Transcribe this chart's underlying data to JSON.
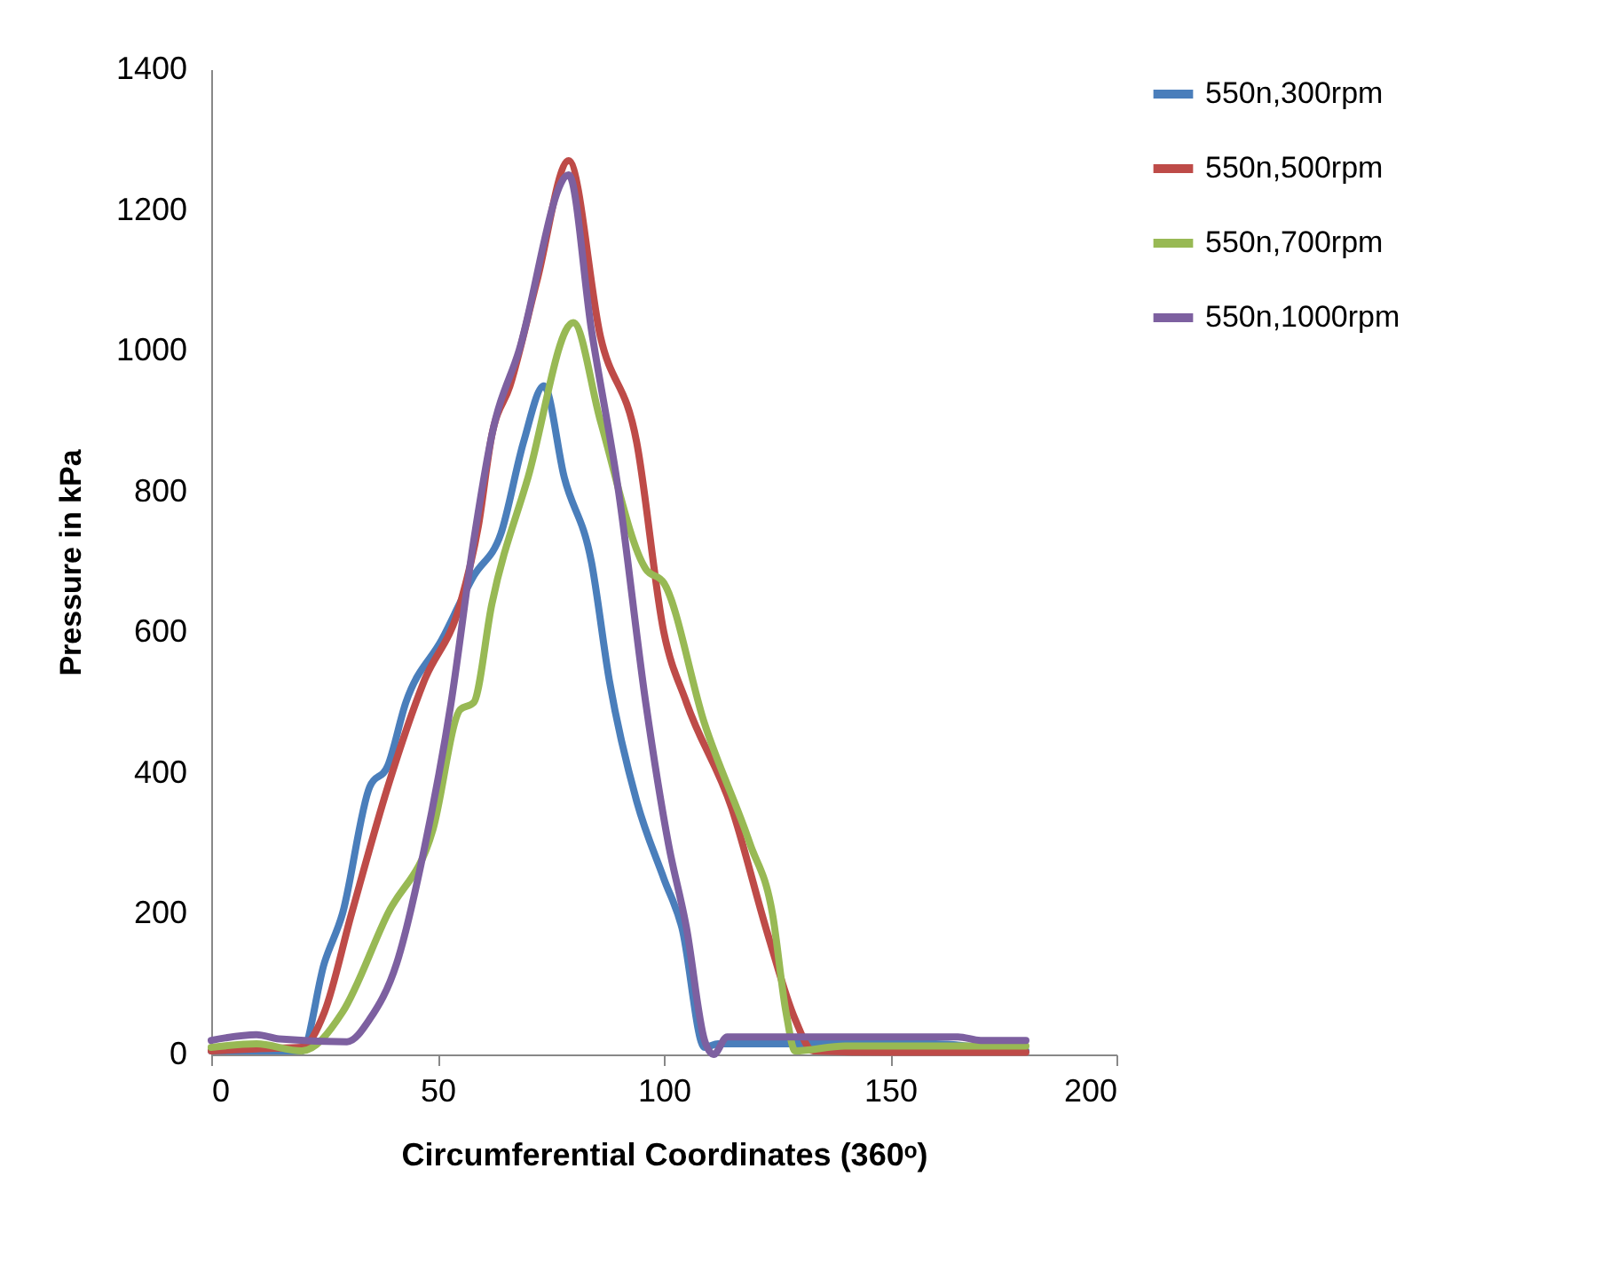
{
  "chart_data": {
    "type": "line",
    "xlabel": "Circumferential Coordinates (360ᵒ)",
    "ylabel": "Pressure in kPa",
    "xlim": [
      0,
      200
    ],
    "xticks": [
      0,
      50,
      100,
      150,
      200
    ],
    "ylim": [
      0,
      1400
    ],
    "yticks": [
      0,
      200,
      400,
      600,
      800,
      1000,
      1200,
      1400
    ],
    "grid": false,
    "legend": "right",
    "marker": "none",
    "line_style": "solid",
    "series": [
      {
        "name": "550n,300rpm",
        "color": "#4a7ebb",
        "x": [
          0,
          10,
          20,
          25,
          29,
          35,
          39,
          43,
          51,
          58,
          64,
          69,
          73.5,
          78,
          84,
          88,
          94,
          100,
          104,
          109,
          112,
          120,
          140,
          160,
          170,
          180
        ],
        "values": [
          5,
          5,
          5,
          130,
          200,
          380,
          410,
          500,
          590,
          680,
          740,
          870,
          950,
          820,
          700,
          530,
          360,
          250,
          180,
          10,
          15,
          15,
          15,
          15,
          10,
          5
        ]
      },
      {
        "name": "550n,500rpm",
        "color": "#be4b48",
        "x": [
          0,
          10,
          20,
          25,
          31,
          39,
          47,
          55,
          59,
          62,
          66,
          72,
          79,
          86,
          94,
          100,
          105,
          115,
          123,
          129,
          133,
          150,
          180
        ],
        "values": [
          5,
          8,
          10,
          60,
          200,
          380,
          530,
          640,
          750,
          880,
          950,
          1100,
          1270,
          1020,
          870,
          600,
          500,
          350,
          170,
          50,
          5,
          3,
          3
        ]
      },
      {
        "name": "550n,700rpm",
        "color": "#98b954",
        "x": [
          0,
          10,
          20,
          29,
          39,
          49,
          55,
          58,
          62,
          70,
          80,
          86,
          96,
          100,
          109,
          119,
          124,
          127,
          129,
          140,
          160,
          180
        ],
        "values": [
          10,
          15,
          5,
          60,
          200,
          320,
          490,
          500,
          640,
          820,
          1040,
          900,
          690,
          670,
          470,
          300,
          200,
          60,
          5,
          12,
          12,
          12
        ]
      },
      {
        "name": "550n,1000rpm",
        "color": "#7d60a0",
        "x": [
          0,
          10,
          15,
          30,
          35,
          41,
          47,
          53,
          58,
          62,
          68,
          79,
          84,
          90,
          96,
          101,
          105,
          109,
          111,
          114,
          140,
          165,
          170,
          180
        ],
        "values": [
          20,
          28,
          22,
          18,
          50,
          130,
          290,
          500,
          730,
          880,
          1000,
          1250,
          1030,
          800,
          500,
          300,
          180,
          20,
          0,
          25,
          25,
          25,
          20,
          20
        ]
      }
    ]
  }
}
